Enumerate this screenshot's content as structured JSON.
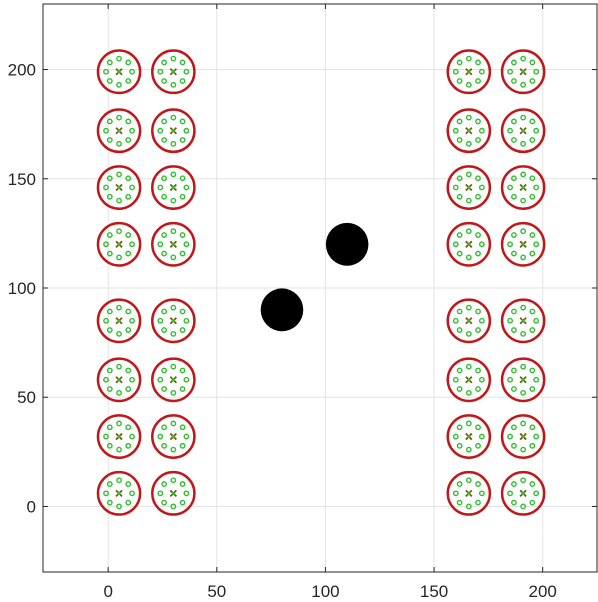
{
  "chart_data": {
    "type": "scatter",
    "title": "",
    "xlabel": "",
    "ylabel": "",
    "xlim": [
      -30,
      225
    ],
    "ylim": [
      -30,
      230
    ],
    "grid": true,
    "x_ticks": [
      0,
      50,
      100,
      150,
      200
    ],
    "y_ticks": [
      0,
      50,
      100,
      150,
      200
    ],
    "x_tick_labels": [
      "0",
      "50",
      "100",
      "150",
      "200"
    ],
    "y_tick_labels": [
      "0",
      "50",
      "100",
      "150",
      "200"
    ],
    "colors": {
      "outer_circle": "#c0181a",
      "inner_points": "#2fbf2f",
      "center_marker": "#7a5a10",
      "obstacle": "#000000",
      "grid": "#e3e3e3",
      "axis": "#262626"
    },
    "cluster_outer_radius": 9.7,
    "cluster_inner_radius": 6.0,
    "cluster_centers": [
      [
        5,
        6
      ],
      [
        30,
        6
      ],
      [
        5,
        32
      ],
      [
        30,
        32
      ],
      [
        5,
        58
      ],
      [
        30,
        58
      ],
      [
        5,
        85
      ],
      [
        30,
        85
      ],
      [
        5,
        120
      ],
      [
        30,
        120
      ],
      [
        5,
        146
      ],
      [
        30,
        146
      ],
      [
        5,
        172
      ],
      [
        30,
        172
      ],
      [
        5,
        199
      ],
      [
        30,
        199
      ],
      [
        166,
        6
      ],
      [
        191,
        6
      ],
      [
        166,
        32
      ],
      [
        191,
        32
      ],
      [
        166,
        58
      ],
      [
        191,
        58
      ],
      [
        166,
        85
      ],
      [
        191,
        85
      ],
      [
        166,
        120
      ],
      [
        191,
        120
      ],
      [
        166,
        146
      ],
      [
        191,
        146
      ],
      [
        166,
        172
      ],
      [
        191,
        172
      ],
      [
        166,
        199
      ],
      [
        191,
        199
      ]
    ],
    "obstacles": [
      {
        "x": 80,
        "y": 90,
        "radius": 9.8
      },
      {
        "x": 110,
        "y": 120,
        "radius": 9.8
      }
    ]
  }
}
